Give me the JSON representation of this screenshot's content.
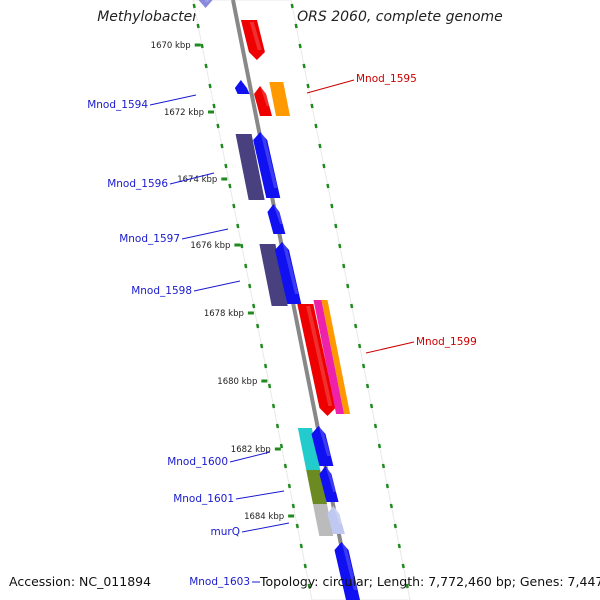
{
  "title": "Methylobacterium nodulans ORS 2060, complete genome",
  "accession_text": "Accession: NC_011894",
  "summary_text": "Topology: circular; Length: 7,772,460 bp; Genes: 7,447",
  "colors": {
    "backbone": "#888888",
    "tick_green": "#1f8a1f",
    "label_blue": "#1a1ad0",
    "label_red": "#cc0000",
    "gene_blue": "#1010f0",
    "gene_red": "#ee0000",
    "gene_orange": "#ff9900",
    "gene_magenta": "#ee22aa",
    "gene_navy": "#48407f",
    "gene_cyan": "#22cccc",
    "gene_olive": "#6b8a22",
    "gene_gray": "#bbbbbb"
  },
  "kbp_ticks": [
    "1670 kbp",
    "1672 kbp",
    "1674 kbp",
    "1676 kbp",
    "1678 kbp",
    "1680 kbp",
    "1682 kbp",
    "1684 kbp"
  ],
  "genes": [
    {
      "name": "Mnod_1594",
      "label": true
    },
    {
      "name": "Mnod_1595",
      "label": true
    },
    {
      "name": "Mnod_1596",
      "label": true
    },
    {
      "name": "Mnod_1597",
      "label": true
    },
    {
      "name": "Mnod_1598",
      "label": true
    },
    {
      "name": "Mnod_1599",
      "label": true
    },
    {
      "name": "Mnod_1600",
      "label": true
    },
    {
      "name": "Mnod_1601",
      "label": true
    },
    {
      "name": "murQ",
      "label": true
    },
    {
      "name": "Mnod_1603",
      "label": true
    }
  ]
}
